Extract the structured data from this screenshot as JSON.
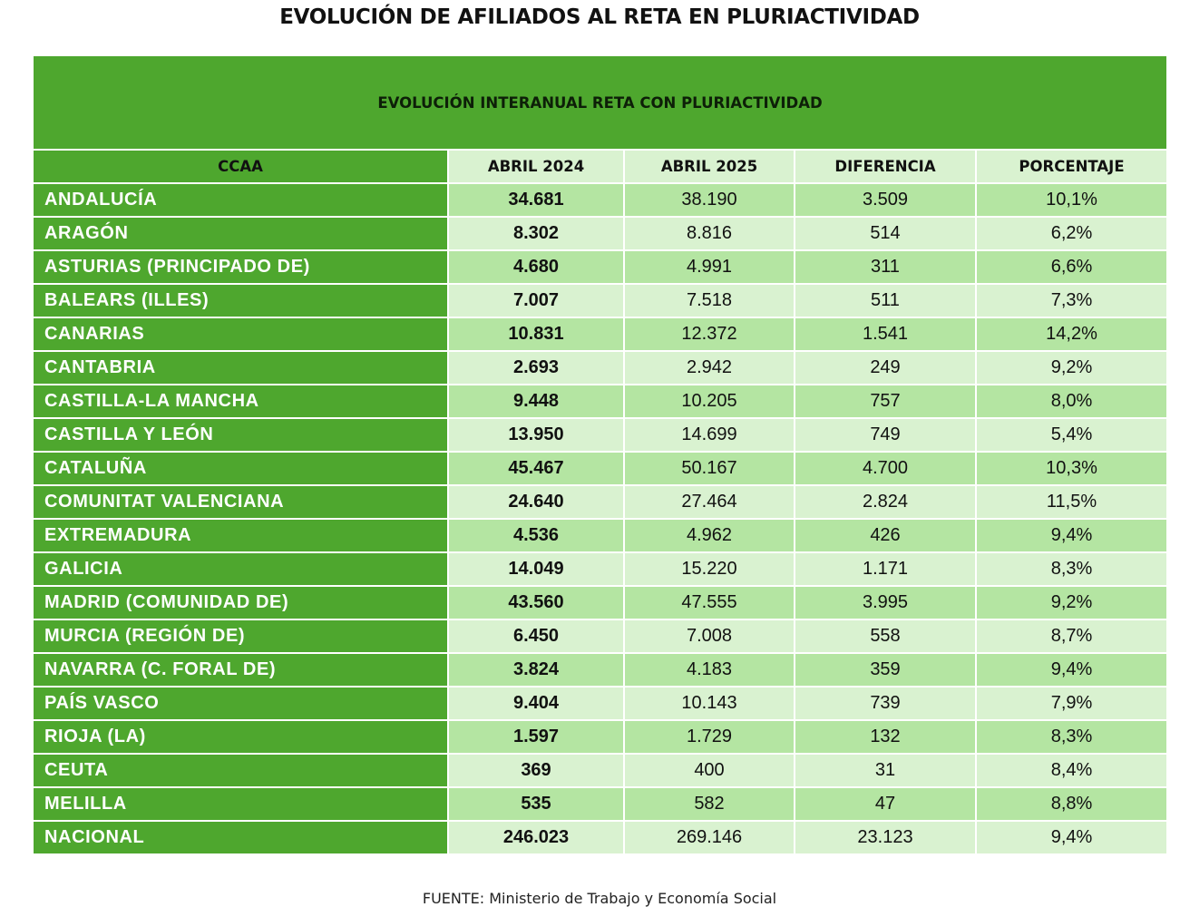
{
  "title": "EVOLUCIÓN DE AFILIADOS AL RETA EN PLURIACTIVIDAD",
  "table": {
    "banner": "EVOLUCIÓN INTERANUAL RETA CON PLURIACTIVIDAD",
    "headers": [
      "CCAA",
      "ABRIL 2024",
      "ABRIL 2025",
      "DIFERENCIA",
      "PORCENTAJE"
    ],
    "rows": [
      {
        "ccaa": "ANDALUCÍA",
        "abril_2024": "34.681",
        "abril_2025": "38.190",
        "diferencia": "3.509",
        "porcentaje": "10,1%"
      },
      {
        "ccaa": "ARAGÓN",
        "abril_2024": "8.302",
        "abril_2025": "8.816",
        "diferencia": "514",
        "porcentaje": "6,2%"
      },
      {
        "ccaa": "ASTURIAS (PRINCIPADO DE)",
        "abril_2024": "4.680",
        "abril_2025": "4.991",
        "diferencia": "311",
        "porcentaje": "6,6%"
      },
      {
        "ccaa": "BALEARS (ILLES)",
        "abril_2024": "7.007",
        "abril_2025": "7.518",
        "diferencia": "511",
        "porcentaje": "7,3%"
      },
      {
        "ccaa": "CANARIAS",
        "abril_2024": "10.831",
        "abril_2025": "12.372",
        "diferencia": "1.541",
        "porcentaje": "14,2%"
      },
      {
        "ccaa": "CANTABRIA",
        "abril_2024": "2.693",
        "abril_2025": "2.942",
        "diferencia": "249",
        "porcentaje": "9,2%"
      },
      {
        "ccaa": "CASTILLA-LA MANCHA",
        "abril_2024": "9.448",
        "abril_2025": "10.205",
        "diferencia": "757",
        "porcentaje": "8,0%"
      },
      {
        "ccaa": "CASTILLA Y LEÓN",
        "abril_2024": "13.950",
        "abril_2025": "14.699",
        "diferencia": "749",
        "porcentaje": "5,4%"
      },
      {
        "ccaa": "CATALUÑA",
        "abril_2024": "45.467",
        "abril_2025": "50.167",
        "diferencia": "4.700",
        "porcentaje": "10,3%"
      },
      {
        "ccaa": "COMUNITAT VALENCIANA",
        "abril_2024": "24.640",
        "abril_2025": "27.464",
        "diferencia": "2.824",
        "porcentaje": "11,5%"
      },
      {
        "ccaa": "EXTREMADURA",
        "abril_2024": "4.536",
        "abril_2025": "4.962",
        "diferencia": "426",
        "porcentaje": "9,4%"
      },
      {
        "ccaa": "GALICIA",
        "abril_2024": "14.049",
        "abril_2025": "15.220",
        "diferencia": "1.171",
        "porcentaje": "8,3%"
      },
      {
        "ccaa": "MADRID (COMUNIDAD DE)",
        "abril_2024": "43.560",
        "abril_2025": "47.555",
        "diferencia": "3.995",
        "porcentaje": "9,2%"
      },
      {
        "ccaa": "MURCIA (REGIÓN DE)",
        "abril_2024": "6.450",
        "abril_2025": "7.008",
        "diferencia": "558",
        "porcentaje": "8,7%"
      },
      {
        "ccaa": "NAVARRA (C. FORAL DE)",
        "abril_2024": "3.824",
        "abril_2025": "4.183",
        "diferencia": "359",
        "porcentaje": "9,4%"
      },
      {
        "ccaa": "PAÍS VASCO",
        "abril_2024": "9.404",
        "abril_2025": "10.143",
        "diferencia": "739",
        "porcentaje": "7,9%"
      },
      {
        "ccaa": "RIOJA (LA)",
        "abril_2024": "1.597",
        "abril_2025": "1.729",
        "diferencia": "132",
        "porcentaje": "8,3%"
      },
      {
        "ccaa": "CEUTA",
        "abril_2024": "369",
        "abril_2025": "400",
        "diferencia": "31",
        "porcentaje": "8,4%"
      },
      {
        "ccaa": "MELILLA",
        "abril_2024": "535",
        "abril_2025": "582",
        "diferencia": "47",
        "porcentaje": "8,8%"
      },
      {
        "ccaa": "NACIONAL",
        "abril_2024": "246.023",
        "abril_2025": "269.146",
        "diferencia": "23.123",
        "porcentaje": "9,4%"
      }
    ]
  },
  "footer": "FUENTE: Ministerio de Trabajo y Economía Social",
  "colors": {
    "green": "#4ea72e",
    "light_green_a": "#b4e5a2",
    "light_green_b": "#d9f2d0"
  }
}
